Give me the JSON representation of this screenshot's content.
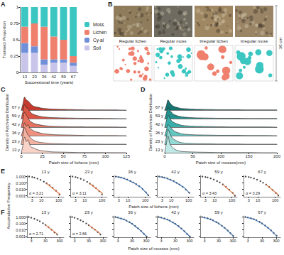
{
  "chart_data": [
    {
      "type": "bar",
      "label": "A",
      "stacked": true,
      "xlabel": "Successional time (years)",
      "ylabel": "Transect Proportion",
      "categories": [
        "13",
        "23",
        "36",
        "42",
        "59",
        "67"
      ],
      "ylim": [
        0,
        1
      ],
      "yticks": [
        0,
        0.25,
        0.5,
        0.75,
        1
      ],
      "legend": "right",
      "grid": false,
      "series": [
        {
          "name": "Soil",
          "color": "#c9c5ea",
          "values": [
            0.3,
            0.3,
            0.12,
            0.15,
            0.15,
            0.1
          ]
        },
        {
          "name": "Cy-al",
          "color": "#6f8fd8",
          "values": [
            0.15,
            0.1,
            0.08,
            0.05,
            0.05,
            0.05
          ]
        },
        {
          "name": "Lichen",
          "color": "#f0806e",
          "values": [
            0.25,
            0.35,
            0.5,
            0.35,
            0.3,
            0.1
          ]
        },
        {
          "name": "Moss",
          "color": "#3cc6c2",
          "values": [
            0.3,
            0.25,
            0.3,
            0.45,
            0.5,
            0.75
          ]
        }
      ]
    },
    {
      "type": "ridgeline",
      "label": "C",
      "xlabel": "Patch size of lichens (mm)",
      "ylabel": "Density of Patch-size Distribution",
      "x": [
        0,
        2,
        4,
        6,
        8,
        10,
        12,
        15,
        20,
        25,
        30,
        35,
        40,
        50,
        60,
        70,
        80,
        100,
        125
      ],
      "xlim": [
        0,
        125
      ],
      "xticks": [
        0,
        25,
        50,
        75,
        100,
        125
      ],
      "ylim": [
        0,
        0.1
      ],
      "tick_labels": "x",
      "grid": false,
      "series": [
        {
          "name": "13 y",
          "color": "#f9d3c8",
          "values": [
            0,
            0.04,
            0.085,
            0.06,
            0.07,
            0.045,
            0.03,
            0.025,
            0.015,
            0.01,
            0.008,
            0.005,
            0.004,
            0.003,
            0.002,
            0.001,
            0.001,
            0.0005,
            0
          ]
        },
        {
          "name": "23 y",
          "color": "#f4b3a2",
          "values": [
            0,
            0.05,
            0.09,
            0.07,
            0.05,
            0.04,
            0.03,
            0.02,
            0.012,
            0.008,
            0.006,
            0.004,
            0.003,
            0.002,
            0.001,
            0.001,
            0.001,
            0,
            0
          ]
        },
        {
          "name": "36 y",
          "color": "#ee927f",
          "values": [
            0,
            0.03,
            0.07,
            0.05,
            0.06,
            0.04,
            0.035,
            0.025,
            0.018,
            0.012,
            0.009,
            0.007,
            0.005,
            0.004,
            0.003,
            0.002,
            0.001,
            0.001,
            0
          ]
        },
        {
          "name": "42 y",
          "color": "#e5735f",
          "values": [
            0,
            0.045,
            0.08,
            0.065,
            0.05,
            0.035,
            0.028,
            0.02,
            0.014,
            0.01,
            0.007,
            0.005,
            0.004,
            0.003,
            0.002,
            0.002,
            0.001,
            0.001,
            0
          ]
        },
        {
          "name": "59 y",
          "color": "#d95545",
          "values": [
            0,
            0.04,
            0.075,
            0.06,
            0.055,
            0.04,
            0.03,
            0.022,
            0.015,
            0.01,
            0.008,
            0.006,
            0.005,
            0.004,
            0.003,
            0.002,
            0.002,
            0.001,
            0
          ]
        },
        {
          "name": "67 y",
          "color": "#c43a2e",
          "values": [
            0,
            0.035,
            0.07,
            0.055,
            0.05,
            0.04,
            0.03,
            0.02,
            0.015,
            0.01,
            0.008,
            0.006,
            0.005,
            0.004,
            0.003,
            0.002,
            0.001,
            0.001,
            0
          ]
        }
      ]
    },
    {
      "type": "ridgeline",
      "label": "D",
      "xlabel": "Patch size of mosses(mm)",
      "ylabel": "Density of Patch-size Distribution",
      "x": [
        0,
        3,
        6,
        9,
        12,
        15,
        20,
        25,
        30,
        40,
        50,
        60,
        80,
        100,
        125,
        150,
        175,
        200
      ],
      "xlim": [
        0,
        200
      ],
      "xticks": [
        0,
        50,
        100,
        150,
        200
      ],
      "ylim": [
        0,
        0.1
      ],
      "tick_labels": "x",
      "grid": false,
      "series": [
        {
          "name": "13 y",
          "color": "#bfe9e6",
          "values": [
            0,
            0.05,
            0.09,
            0.05,
            0.035,
            0.025,
            0.015,
            0.01,
            0.007,
            0.005,
            0.004,
            0.003,
            0.002,
            0.001,
            0.001,
            0.001,
            0,
            0
          ]
        },
        {
          "name": "23 y",
          "color": "#93d9d4",
          "values": [
            0,
            0.04,
            0.08,
            0.06,
            0.04,
            0.03,
            0.02,
            0.012,
            0.008,
            0.005,
            0.004,
            0.003,
            0.002,
            0.001,
            0.001,
            0,
            0,
            0
          ]
        },
        {
          "name": "36 y",
          "color": "#63c6c0",
          "values": [
            0,
            0.03,
            0.06,
            0.05,
            0.04,
            0.03,
            0.02,
            0.015,
            0.01,
            0.007,
            0.005,
            0.004,
            0.003,
            0.002,
            0.002,
            0.001,
            0.001,
            0
          ]
        },
        {
          "name": "42 y",
          "color": "#3aaea8",
          "values": [
            0,
            0.035,
            0.065,
            0.05,
            0.035,
            0.028,
            0.02,
            0.015,
            0.01,
            0.007,
            0.005,
            0.004,
            0.003,
            0.002,
            0.001,
            0.001,
            0.001,
            0
          ]
        },
        {
          "name": "59 y",
          "color": "#23908b",
          "values": [
            0,
            0.03,
            0.06,
            0.045,
            0.035,
            0.025,
            0.018,
            0.013,
            0.01,
            0.007,
            0.005,
            0.004,
            0.003,
            0.002,
            0.002,
            0.001,
            0.001,
            0.001
          ]
        },
        {
          "name": "67 y",
          "color": "#167470",
          "values": [
            0,
            0.025,
            0.055,
            0.04,
            0.03,
            0.022,
            0.016,
            0.012,
            0.009,
            0.007,
            0.005,
            0.004,
            0.003,
            0.002,
            0.002,
            0.001,
            0.001,
            0.001
          ]
        }
      ]
    },
    {
      "type": "scatter",
      "label": "E",
      "xlabel": "Patch size of lichens (mm)",
      "ylabel": "Accumulative Frequency",
      "log": true,
      "marker": "circle",
      "grid": false,
      "xlim": [
        1.5,
        200
      ],
      "xticks": [
        3,
        10,
        100
      ],
      "ylim": [
        0.0007,
        1.5
      ],
      "yticks": [
        {
          "value": 0.001,
          "label": "0.001"
        },
        {
          "value": 0.01,
          "label": "0.010"
        },
        {
          "value": 0.1,
          "label": "0.100"
        },
        {
          "value": 1,
          "label": "1.000"
        }
      ],
      "panels": [
        {
          "title": "13 y",
          "color": "#1c1c1c",
          "x": [
            2,
            3,
            4,
            6,
            9,
            14,
            20,
            30,
            45,
            70,
            110
          ],
          "values": [
            1,
            0.85,
            0.7,
            0.48,
            0.3,
            0.16,
            0.09,
            0.045,
            0.018,
            0.006,
            0.0015
          ],
          "fit": {
            "color": "#e0703a",
            "x": [
              20,
              130
            ],
            "values": [
              0.09,
              0.0014
            ]
          },
          "annotation": "α = 3.21"
        },
        {
          "title": "23 y",
          "color": "#1c1c1c",
          "tick_labels": "x",
          "x": [
            2,
            3,
            4,
            6,
            9,
            14,
            20,
            30,
            45,
            70,
            100
          ],
          "values": [
            1,
            0.82,
            0.66,
            0.45,
            0.28,
            0.15,
            0.08,
            0.04,
            0.016,
            0.005,
            0.0016
          ],
          "fit": {
            "color": "#e0703a",
            "x": [
              20,
              110
            ],
            "values": [
              0.08,
              0.0022
            ]
          },
          "annotation": "α = 3.11"
        },
        {
          "title": "36 y",
          "color": "#1c1c1c",
          "tick_labels": "x",
          "x": [
            2,
            3,
            4,
            6,
            9,
            14,
            20,
            30,
            45,
            70,
            110,
            150
          ],
          "values": [
            1,
            0.86,
            0.72,
            0.52,
            0.34,
            0.2,
            0.12,
            0.065,
            0.03,
            0.011,
            0.0035,
            0.0012
          ],
          "fit": {
            "color": "#3a6fb0",
            "x": [
              2,
              6,
              20,
              60,
              150
            ],
            "values": [
              1,
              0.52,
              0.12,
              0.018,
              0.0012
            ]
          }
        },
        {
          "title": "42 y",
          "color": "#1c1c1c",
          "tick_labels": "x",
          "x": [
            2,
            3,
            4,
            6,
            9,
            14,
            20,
            30,
            45,
            70,
            110
          ],
          "values": [
            1,
            0.84,
            0.7,
            0.5,
            0.32,
            0.19,
            0.11,
            0.058,
            0.026,
            0.009,
            0.0028
          ],
          "fit": {
            "color": "#3a6fb0",
            "x": [
              2,
              6,
              20,
              60,
              110
            ],
            "values": [
              1,
              0.5,
              0.11,
              0.016,
              0.0028
            ]
          }
        },
        {
          "title": "59 y",
          "color": "#1c1c1c",
          "tick_labels": "x",
          "x": [
            2,
            3,
            4,
            6,
            9,
            14,
            20,
            30,
            45,
            70,
            110,
            150
          ],
          "values": [
            1,
            0.86,
            0.72,
            0.52,
            0.34,
            0.2,
            0.12,
            0.06,
            0.025,
            0.009,
            0.0028,
            0.001
          ],
          "fit": {
            "color": "#e0703a",
            "x": [
              30,
              150
            ],
            "values": [
              0.06,
              0.0012
            ]
          },
          "annotation": "α = 3.43"
        },
        {
          "title": "67 y",
          "color": "#1c1c1c",
          "tick_labels": "x",
          "x": [
            2,
            3,
            4,
            6,
            9,
            14,
            20,
            30,
            45,
            70,
            110,
            150
          ],
          "values": [
            1,
            0.85,
            0.7,
            0.5,
            0.33,
            0.19,
            0.11,
            0.056,
            0.024,
            0.0085,
            0.0027,
            0.0011
          ],
          "fit": {
            "color": "#e0703a",
            "x": [
              30,
              150
            ],
            "values": [
              0.056,
              0.0014
            ]
          },
          "annotation": "α = 3.29"
        }
      ]
    },
    {
      "type": "scatter",
      "label": "F",
      "xlabel": "Patch size of mosses (mm)",
      "log": true,
      "marker": "circle",
      "grid": false,
      "xlim": [
        1.5,
        600
      ],
      "xticks": [
        3,
        30,
        300
      ],
      "ylim": [
        0.0007,
        1.5
      ],
      "yticks": [
        {
          "value": 0.001,
          "label": "0.001"
        },
        {
          "value": 0.01,
          "label": "0.010"
        },
        {
          "value": 0.1,
          "label": "0.100"
        },
        {
          "value": 1,
          "label": "1.000"
        }
      ],
      "panels": [
        {
          "title": "13 y",
          "color": "#1c1c1c",
          "x": [
            2,
            3,
            5,
            8,
            12,
            20,
            30,
            50,
            80,
            130,
            200
          ],
          "values": [
            1,
            0.8,
            0.55,
            0.35,
            0.22,
            0.11,
            0.06,
            0.025,
            0.011,
            0.004,
            0.0018
          ],
          "fit": {
            "color": "#e0703a",
            "x": [
              30,
              200
            ],
            "values": [
              0.06,
              0.0023
            ]
          },
          "annotation": "α = 2.71"
        },
        {
          "title": "23 y",
          "color": "#1c1c1c",
          "tick_labels": "x",
          "x": [
            2,
            3,
            5,
            8,
            12,
            20,
            30,
            50,
            80,
            130,
            200
          ],
          "values": [
            1,
            0.78,
            0.52,
            0.33,
            0.2,
            0.1,
            0.055,
            0.024,
            0.011,
            0.0045,
            0.0019
          ],
          "fit": {
            "color": "#e0703a",
            "x": [
              30,
              200
            ],
            "values": [
              0.055,
              0.0024
            ]
          },
          "annotation": "α = 2.66"
        },
        {
          "title": "36 y",
          "color": "#1c1c1c",
          "tick_labels": "x",
          "x": [
            2,
            3,
            5,
            8,
            12,
            20,
            30,
            50,
            80,
            130,
            200,
            320
          ],
          "values": [
            1,
            0.85,
            0.62,
            0.43,
            0.29,
            0.16,
            0.09,
            0.04,
            0.017,
            0.0065,
            0.0025,
            0.0009
          ],
          "fit": {
            "color": "#3a6fb0",
            "x": [
              2,
              8,
              30,
              100,
              320
            ],
            "values": [
              1,
              0.43,
              0.09,
              0.011,
              0.0009
            ]
          }
        },
        {
          "title": "42 y",
          "color": "#1c1c1c",
          "tick_labels": "x",
          "x": [
            2,
            3,
            5,
            8,
            12,
            20,
            30,
            50,
            80,
            130,
            200,
            320
          ],
          "values": [
            1,
            0.84,
            0.6,
            0.42,
            0.28,
            0.15,
            0.085,
            0.038,
            0.016,
            0.006,
            0.0023,
            0.0009
          ],
          "fit": {
            "color": "#3a6fb0",
            "x": [
              2,
              8,
              30,
              100,
              320
            ],
            "values": [
              1,
              0.42,
              0.085,
              0.01,
              0.0009
            ]
          }
        },
        {
          "title": "59 y",
          "color": "#1c1c1c",
          "tick_labels": "x",
          "x": [
            2,
            3,
            5,
            8,
            12,
            20,
            30,
            50,
            80,
            130,
            200,
            320
          ],
          "values": [
            1,
            0.86,
            0.64,
            0.45,
            0.31,
            0.17,
            0.1,
            0.045,
            0.02,
            0.008,
            0.003,
            0.0011
          ],
          "fit": {
            "color": "#3a6fb0",
            "x": [
              2,
              8,
              30,
              100,
              320
            ],
            "values": [
              1,
              0.45,
              0.1,
              0.013,
              0.0011
            ]
          }
        },
        {
          "title": "67 y",
          "color": "#1c1c1c",
          "tick_labels": "x",
          "x": [
            2,
            3,
            5,
            8,
            12,
            20,
            30,
            50,
            80,
            130,
            200,
            320
          ],
          "values": [
            1,
            0.86,
            0.65,
            0.46,
            0.32,
            0.18,
            0.1,
            0.047,
            0.021,
            0.0085,
            0.0032,
            0.0012
          ],
          "fit": {
            "color": "#3a6fb0",
            "x": [
              2,
              8,
              30,
              100,
              320
            ],
            "values": [
              1,
              0.46,
              0.1,
              0.014,
              0.0012
            ]
          }
        }
      ]
    }
  ],
  "panel_b": {
    "label": "B",
    "scale_bar": "30 cm",
    "tiles": [
      {
        "title": "Regular lichen",
        "color": "#f0806e"
      },
      {
        "title": "Regular moss",
        "color": "#3cc6c2"
      },
      {
        "title": "Irregular lichen",
        "color": "#f0806e"
      },
      {
        "title": "Irregular moss",
        "color": "#3cc6c2"
      }
    ]
  }
}
